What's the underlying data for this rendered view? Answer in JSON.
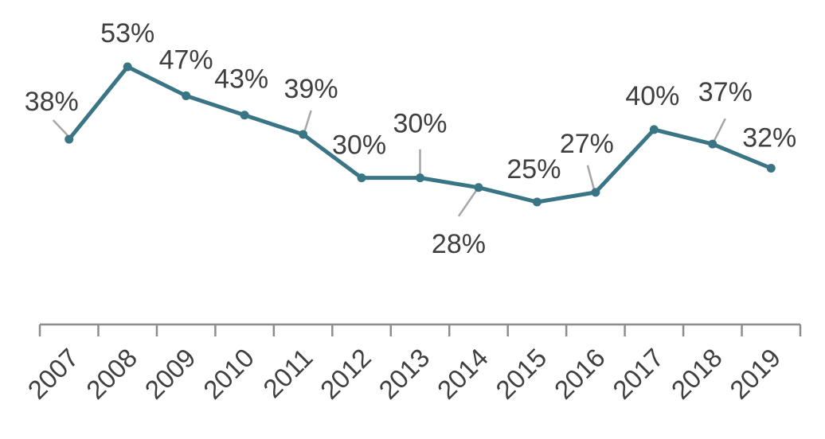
{
  "chart_data": {
    "type": "line",
    "title": "",
    "xlabel": "",
    "ylabel": "",
    "categories": [
      "2007",
      "2008",
      "2009",
      "2010",
      "2011",
      "2012",
      "2013",
      "2014",
      "2015",
      "2016",
      "2017",
      "2018",
      "2019"
    ],
    "series": [
      {
        "values": [
          38,
          53,
          47,
          43,
          39,
          30,
          30,
          28,
          25,
          27,
          40,
          37,
          32
        ],
        "labels": [
          "38%",
          "53%",
          "47%",
          "43%",
          "39%",
          "30%",
          "30%",
          "28%",
          "25%",
          "27%",
          "40%",
          "37%",
          "32%"
        ],
        "color": "#3a7585"
      }
    ],
    "ylim": [
      0,
      60
    ],
    "grid": false,
    "legend": "none",
    "colors": {
      "line": "#3a7585",
      "axis": "#8c8c8c",
      "leader": "#a6a6a6",
      "text": "#404040"
    }
  }
}
